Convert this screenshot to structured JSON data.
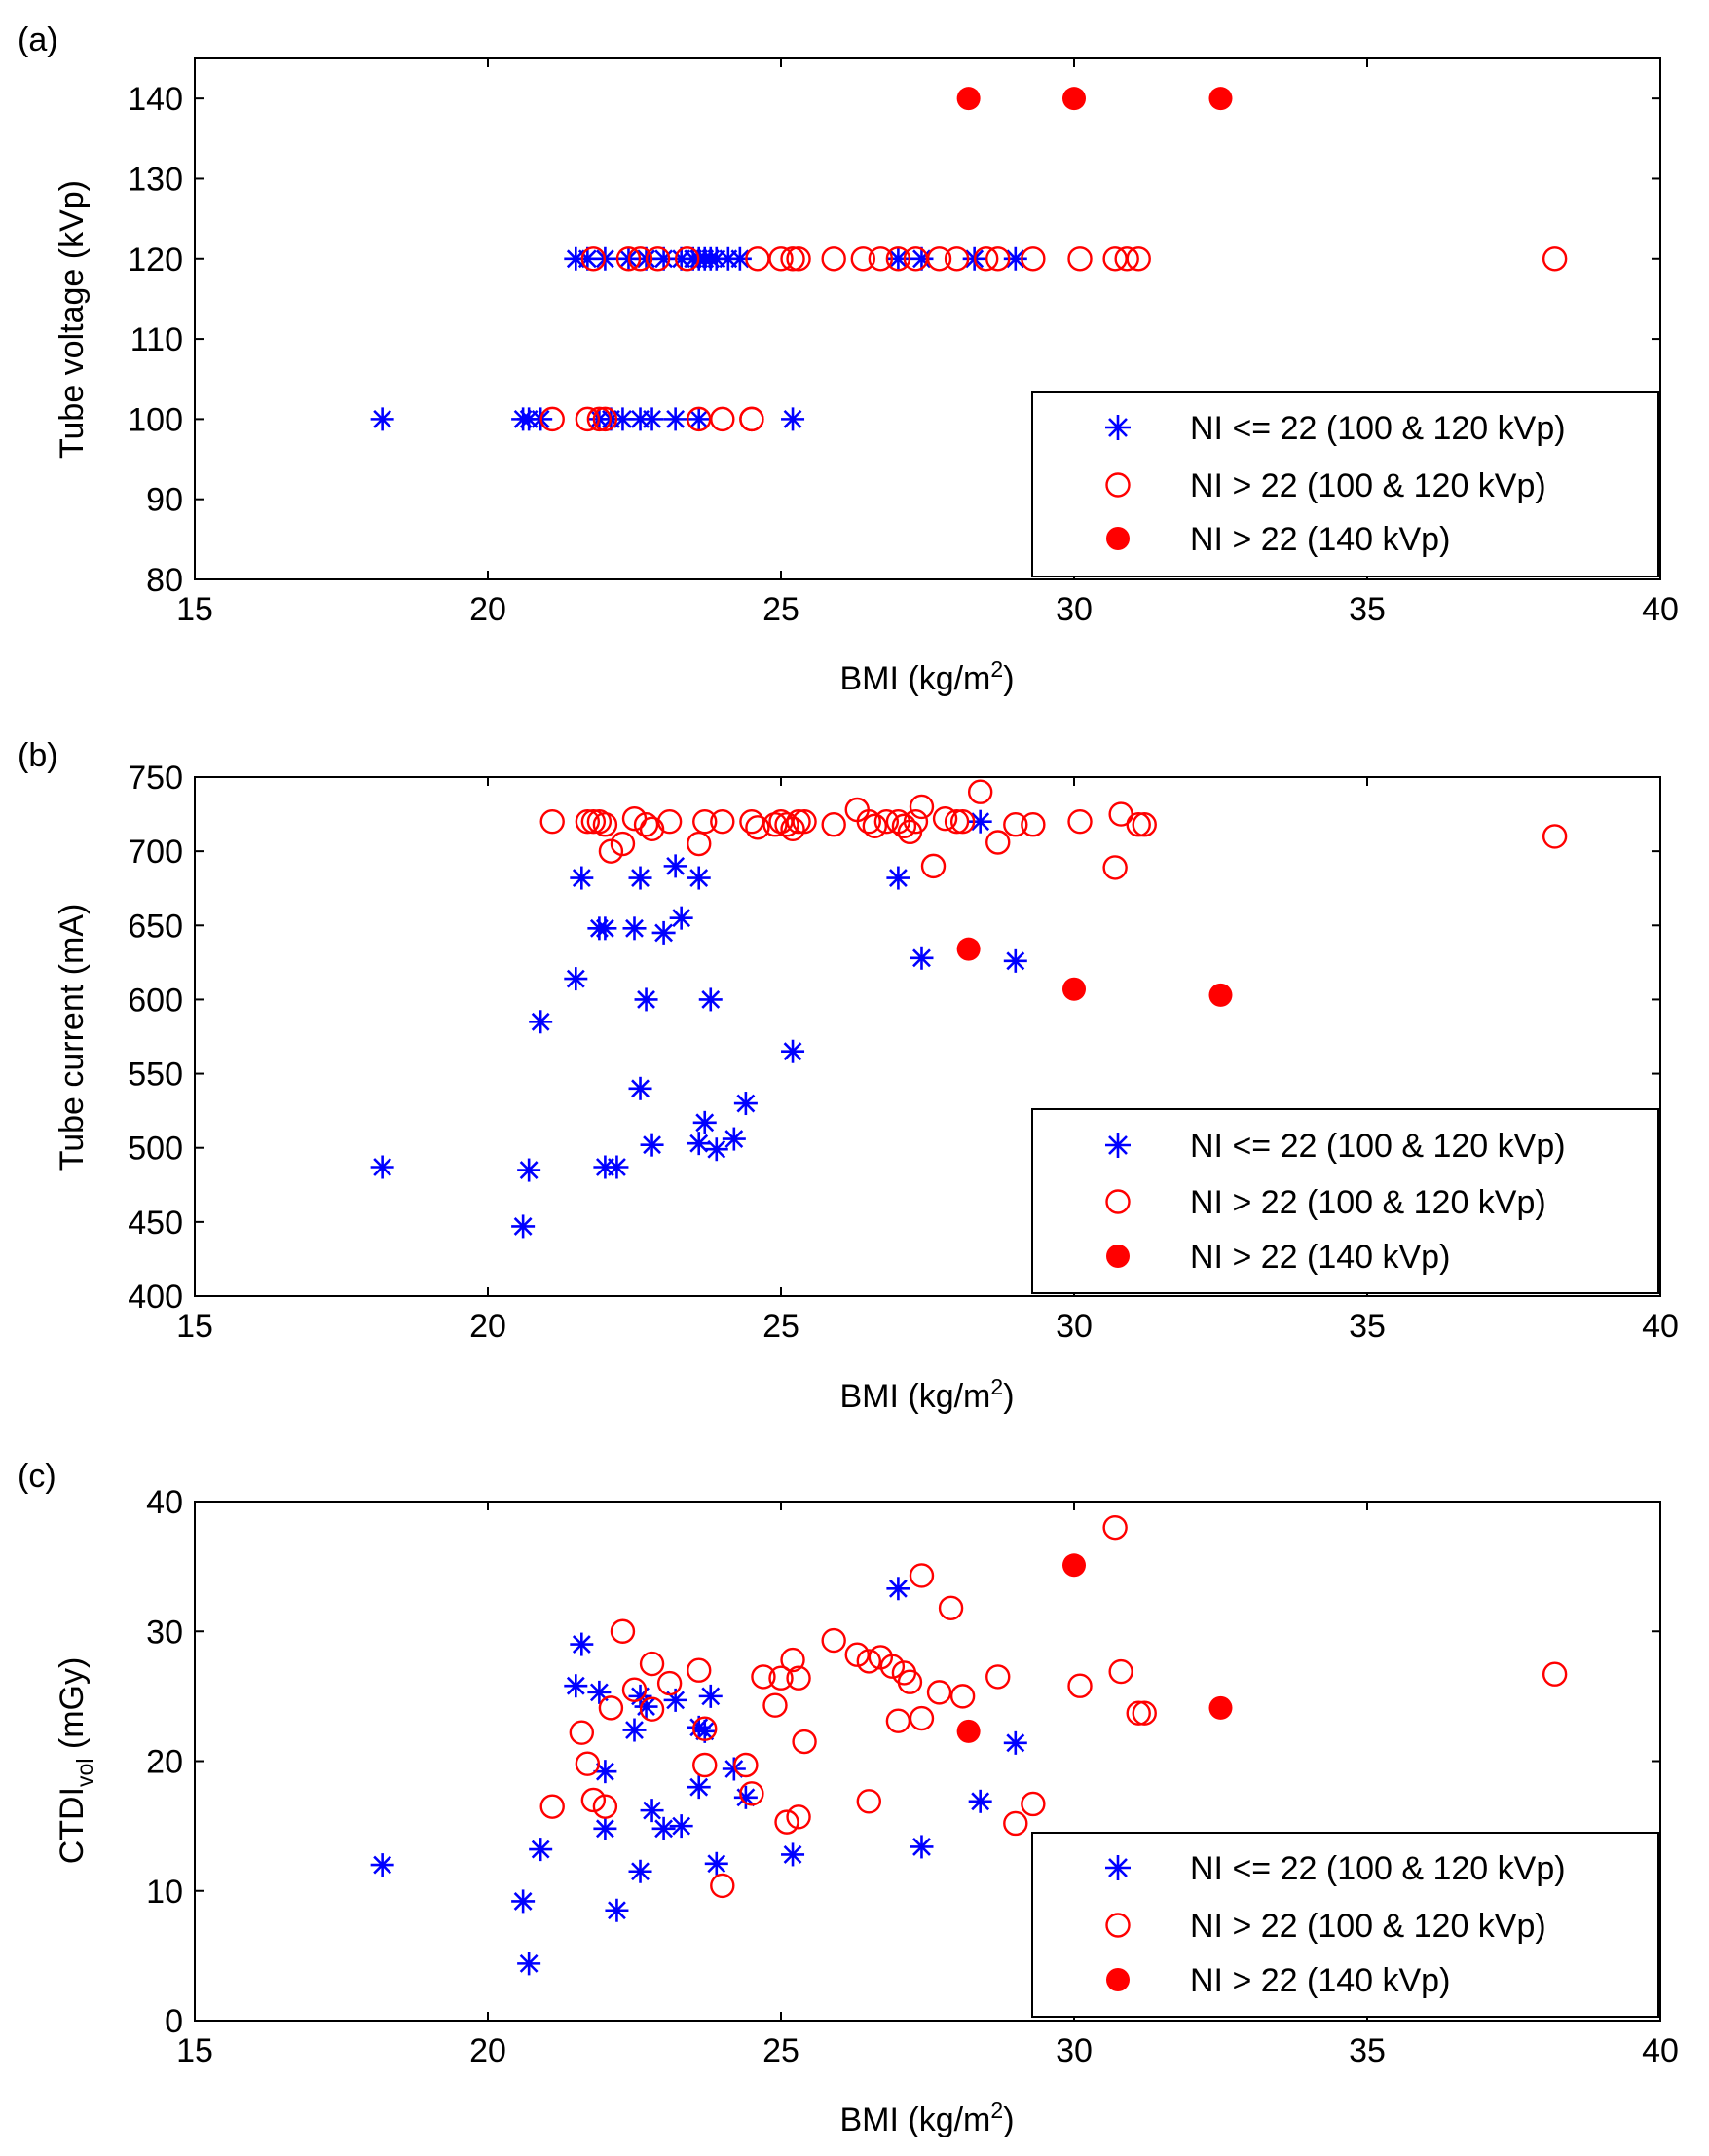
{
  "legend_entries": [
    "NI <= 22 (100 & 120 kVp)",
    "NI > 22 (100 & 120 kVp)",
    "NI > 22 (140 kVp)"
  ],
  "chart_data": [
    {
      "type": "scatter",
      "panel": "(a)",
      "xlabel": "BMI (kg/m",
      "xlabel_sup": "2",
      "xlabel_end": ")",
      "ylabel": "Tube voltage (kVp)",
      "ylabel_sub": "",
      "ylabel_end": "",
      "xlim": [
        15,
        40
      ],
      "ylim": [
        80,
        145
      ],
      "xticks": [
        15,
        20,
        25,
        30,
        35,
        40
      ],
      "yticks": [
        80,
        90,
        100,
        110,
        120,
        130,
        140
      ],
      "legend_position": "bottom-right",
      "series": [
        {
          "name": "NI <= 22 (100 & 120 kVp)",
          "marker": "star",
          "color": "#0000ff",
          "x": [
            18.2,
            20.6,
            20.7,
            20.9,
            21.9,
            22.1,
            22.3,
            22.6,
            22.8,
            23.2,
            23.6,
            25.2,
            21.5,
            21.7,
            22.0,
            22.4,
            22.7,
            23.0,
            23.3,
            23.5,
            23.6,
            23.7,
            23.8,
            23.9,
            24.1,
            24.3,
            27.0,
            27.4,
            28.3,
            29.0
          ],
          "y": [
            100,
            100,
            100,
            100,
            100,
            100,
            100,
            100,
            100,
            100,
            100,
            100,
            120,
            120,
            120,
            120,
            120,
            120,
            120,
            120,
            120,
            120,
            120,
            120,
            120,
            120,
            120,
            120,
            120,
            120
          ]
        },
        {
          "name": "NI > 22 (100 & 120 kVp)",
          "marker": "open-circle",
          "color": "#ff0000",
          "x": [
            21.1,
            21.7,
            21.9,
            22.0,
            23.6,
            24.0,
            24.5,
            24.5,
            21.8,
            22.4,
            22.6,
            22.9,
            23.4,
            24.6,
            25.0,
            25.2,
            25.3,
            25.9,
            26.4,
            26.7,
            27.0,
            27.3,
            27.7,
            28.0,
            28.5,
            28.7,
            29.3,
            30.1,
            30.7,
            30.9,
            31.1,
            38.2
          ],
          "y": [
            100,
            100,
            100,
            100,
            100,
            100,
            100,
            100,
            120,
            120,
            120,
            120,
            120,
            120,
            120,
            120,
            120,
            120,
            120,
            120,
            120,
            120,
            120,
            120,
            120,
            120,
            120,
            120,
            120,
            120,
            120,
            120
          ]
        },
        {
          "name": "NI > 22 (140 kVp)",
          "marker": "filled-circle",
          "color": "#ff0000",
          "x": [
            28.2,
            30.0,
            32.5
          ],
          "y": [
            140,
            140,
            140
          ]
        }
      ]
    },
    {
      "type": "scatter",
      "panel": "(b)",
      "xlabel": "BMI (kg/m",
      "xlabel_sup": "2",
      "xlabel_end": ")",
      "ylabel": "Tube current (mA)",
      "ylabel_sub": "",
      "ylabel_end": "",
      "xlim": [
        15,
        40
      ],
      "ylim": [
        400,
        750
      ],
      "xticks": [
        15,
        20,
        25,
        30,
        35,
        40
      ],
      "yticks": [
        400,
        450,
        500,
        550,
        600,
        650,
        700,
        750
      ],
      "legend_position": "bottom-right",
      "series": [
        {
          "name": "NI <= 22 (100 & 120 kVp)",
          "marker": "star",
          "color": "#0000ff",
          "x": [
            18.2,
            20.6,
            20.7,
            20.9,
            21.5,
            21.6,
            21.9,
            22.0,
            22.0,
            22.2,
            22.5,
            22.6,
            22.6,
            22.7,
            22.8,
            23.0,
            23.2,
            23.3,
            23.6,
            23.6,
            23.7,
            23.8,
            23.9,
            24.2,
            24.4,
            25.2,
            27.0,
            27.4,
            28.4,
            29.0
          ],
          "y": [
            487,
            447,
            485,
            585,
            614,
            682,
            648,
            648,
            487,
            487,
            648,
            682,
            540,
            600,
            502,
            645,
            690,
            655,
            682,
            503,
            517,
            600,
            499,
            506,
            530,
            565,
            682,
            628,
            720,
            626
          ]
        },
        {
          "name": "NI > 22 (100 & 120 kVp)",
          "marker": "open-circle",
          "color": "#ff0000",
          "x": [
            21.1,
            21.7,
            21.8,
            21.9,
            22.0,
            22.1,
            22.3,
            22.5,
            22.7,
            22.8,
            23.1,
            23.6,
            23.7,
            24.0,
            24.5,
            24.6,
            24.9,
            25.0,
            25.1,
            25.2,
            25.3,
            25.4,
            25.9,
            26.3,
            26.5,
            26.6,
            26.8,
            27.0,
            27.1,
            27.2,
            27.3,
            27.4,
            27.6,
            27.8,
            28.0,
            28.1,
            28.4,
            28.7,
            29.0,
            29.3,
            30.1,
            30.7,
            30.8,
            31.1,
            31.2,
            38.2
          ],
          "y": [
            720,
            720,
            720,
            720,
            718,
            700,
            705,
            722,
            718,
            715,
            720,
            705,
            720,
            720,
            720,
            716,
            718,
            720,
            718,
            715,
            720,
            720,
            718,
            728,
            720,
            717,
            720,
            720,
            717,
            713,
            720,
            730,
            690,
            722,
            720,
            720,
            740,
            706,
            718,
            718,
            720,
            689,
            725,
            718,
            718,
            710
          ]
        },
        {
          "name": "NI > 22 (140 kVp)",
          "marker": "filled-circle",
          "color": "#ff0000",
          "x": [
            28.2,
            30.0,
            32.5
          ],
          "y": [
            634,
            607,
            603
          ]
        }
      ]
    },
    {
      "type": "scatter",
      "panel": "(c)",
      "xlabel": "BMI (kg/m",
      "xlabel_sup": "2",
      "xlabel_end": ")",
      "ylabel": "CTDI",
      "ylabel_sub": "vol",
      "ylabel_end": " (mGy)",
      "xlim": [
        15,
        40
      ],
      "ylim": [
        0,
        40
      ],
      "xticks": [
        15,
        20,
        25,
        30,
        35,
        40
      ],
      "yticks": [
        0,
        10,
        20,
        30,
        40
      ],
      "legend_position": "bottom-right",
      "series": [
        {
          "name": "NI <= 22 (100 & 120 kVp)",
          "marker": "star",
          "color": "#0000ff",
          "x": [
            18.2,
            20.6,
            20.7,
            20.9,
            21.5,
            21.6,
            21.9,
            22.0,
            22.0,
            22.2,
            22.5,
            22.6,
            22.6,
            22.7,
            22.8,
            23.0,
            23.2,
            23.3,
            23.6,
            23.6,
            23.7,
            23.8,
            23.9,
            24.2,
            24.4,
            25.2,
            27.0,
            27.4,
            28.4,
            29.0
          ],
          "y": [
            12.0,
            9.2,
            4.4,
            13.2,
            25.8,
            29.0,
            25.3,
            14.8,
            19.2,
            8.5,
            22.4,
            11.5,
            25.0,
            24.2,
            16.2,
            14.8,
            24.7,
            15.0,
            18.0,
            22.6,
            22.3,
            25.0,
            12.1,
            19.4,
            17.2,
            12.8,
            33.3,
            13.4,
            16.9,
            21.4
          ]
        },
        {
          "name": "NI > 22 (100 & 120 kVp)",
          "marker": "open-circle",
          "color": "#ff0000",
          "x": [
            21.1,
            21.6,
            21.7,
            21.8,
            22.0,
            22.1,
            22.3,
            22.5,
            22.8,
            22.8,
            23.1,
            23.6,
            23.7,
            23.7,
            24.0,
            24.4,
            24.5,
            24.7,
            24.9,
            25.0,
            25.1,
            25.2,
            25.3,
            25.3,
            25.4,
            25.9,
            26.3,
            26.5,
            26.5,
            26.7,
            26.9,
            27.0,
            27.1,
            27.2,
            27.4,
            27.4,
            27.7,
            27.9,
            28.1,
            28.7,
            29.0,
            29.3,
            30.1,
            30.8,
            30.7,
            31.1,
            31.2,
            38.2
          ],
          "y": [
            16.5,
            22.2,
            19.8,
            17.0,
            16.5,
            24.1,
            30.0,
            25.5,
            27.5,
            24.0,
            26.0,
            27.0,
            19.7,
            22.5,
            10.4,
            19.7,
            17.5,
            26.5,
            24.3,
            26.4,
            15.3,
            27.8,
            26.4,
            15.7,
            21.5,
            29.3,
            28.2,
            27.7,
            16.9,
            28.0,
            27.3,
            23.1,
            26.8,
            26.1,
            23.3,
            34.3,
            25.3,
            31.8,
            25.0,
            26.5,
            15.2,
            16.7,
            25.8,
            26.9,
            38.0,
            23.7,
            23.7,
            26.7
          ]
        },
        {
          "name": "NI > 22 (140 kVp)",
          "marker": "filled-circle",
          "color": "#ff0000",
          "x": [
            28.2,
            30.0,
            32.5
          ],
          "y": [
            22.3,
            35.1,
            24.1
          ]
        }
      ]
    }
  ]
}
